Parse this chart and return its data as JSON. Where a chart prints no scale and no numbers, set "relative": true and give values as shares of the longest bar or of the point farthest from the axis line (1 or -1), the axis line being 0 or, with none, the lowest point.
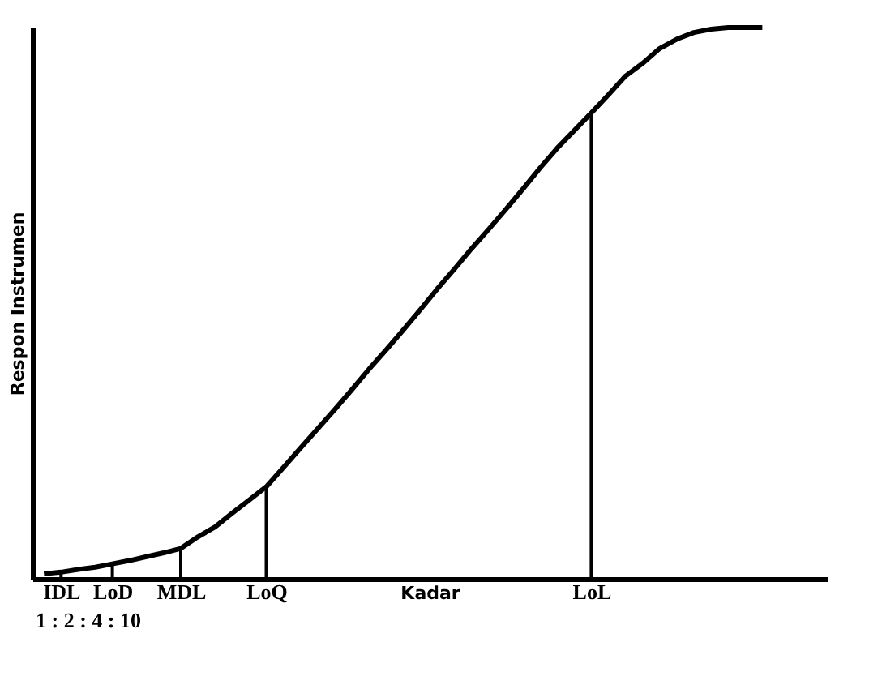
{
  "chart_data": {
    "type": "line",
    "relative": true,
    "xlabel": "Kadar",
    "ylabel": "Respon Instrumen",
    "categories": [
      null,
      "IDL",
      null,
      null,
      "LoD",
      null,
      null,
      null,
      "MDL",
      null,
      null,
      null,
      null,
      "LoQ",
      null,
      null,
      null,
      null,
      null,
      null,
      null,
      null,
      null,
      null,
      null,
      null,
      null,
      null,
      null,
      null,
      null,
      null,
      "LoL",
      null,
      null,
      null,
      null,
      null,
      null,
      null,
      null,
      null,
      null
    ],
    "annotations": [
      "1 : 2 : 4 : 10"
    ],
    "marker": "none",
    "line_style": "solid",
    "series": [
      {
        "color": "#000000",
        "values": [
          0.009,
          0.012,
          0.017,
          0.021,
          0.027,
          0.033,
          0.04,
          0.047,
          0.055,
          0.076,
          0.094,
          0.119,
          0.143,
          0.167,
          0.202,
          0.237,
          0.272,
          0.307,
          0.343,
          0.38,
          0.415,
          0.451,
          0.488,
          0.526,
          0.562,
          0.599,
          0.634,
          0.67,
          0.707,
          0.745,
          0.781,
          0.813,
          0.845,
          0.878,
          0.912,
          0.935,
          0.962,
          0.979,
          0.991,
          0.997,
          1,
          1,
          1
        ]
      },
      {
        "type": "bar",
        "color": "#000000",
        "values": [
          null,
          0.012,
          null,
          null,
          0.027,
          null,
          null,
          null,
          0.055,
          null,
          null,
          null,
          null,
          0.167,
          null,
          null,
          null,
          null,
          null,
          null,
          null,
          null,
          null,
          null,
          null,
          null,
          null,
          null,
          null,
          null,
          null,
          null,
          0.845,
          null,
          null,
          null,
          null,
          null,
          null,
          null,
          null,
          null,
          null
        ]
      }
    ]
  }
}
